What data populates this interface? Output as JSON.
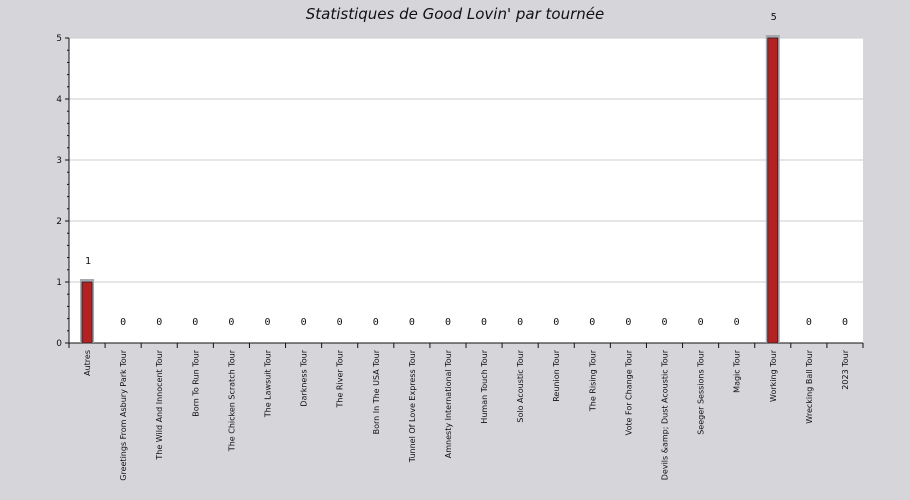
{
  "chart_data": {
    "type": "bar",
    "title": "Statistiques de Good Lovin' par tournée",
    "xlabel": "",
    "ylabel": "",
    "ylim": [
      0,
      5
    ],
    "yticks": [
      0,
      1,
      2,
      3,
      4,
      5
    ],
    "grid": true,
    "legend": "none",
    "categories": [
      "Autres",
      "Greetings From Asbury Park Tour",
      "The Wild And Innocent Tour",
      "Born To Run Tour",
      "The Chicken Scratch Tour",
      "The Lawsuit Tour",
      "Darkness Tour",
      "The River Tour",
      "Born In The USA Tour",
      "Tunnel Of Love Express Tour",
      "Amnesty International Tour",
      "Human Touch Tour",
      "Solo Acoustic Tour",
      "Reunion Tour",
      "The Rising Tour",
      "Vote For Change Tour",
      "Devils &amp; Dust Acoustic Tour",
      "Seeger Sessions Tour",
      "Magic Tour",
      "Working Tour",
      "Wrecking Ball Tour",
      "2023 Tour"
    ],
    "values": [
      1,
      0,
      0,
      0,
      0,
      0,
      0,
      0,
      0,
      0,
      0,
      0,
      0,
      0,
      0,
      0,
      0,
      0,
      0,
      5,
      0,
      0
    ],
    "colors": {
      "bar": "#b22222",
      "bar_shadow": "#a8a8b0",
      "plot_bg": "#ffffff",
      "page_bg": "#d6d6da",
      "grid": "#cccccc"
    }
  }
}
